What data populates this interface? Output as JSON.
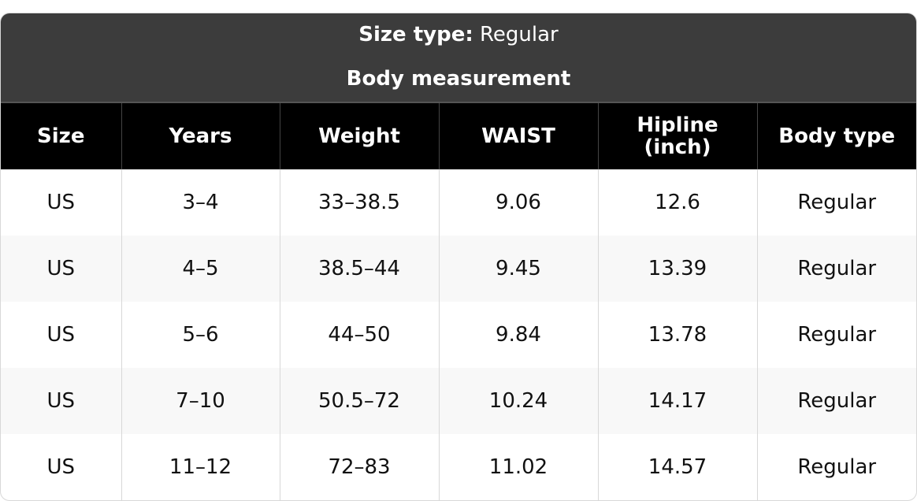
{
  "header": {
    "size_type_label": "Size type:",
    "size_type_value": "Regular",
    "title": "Body measurement"
  },
  "table": {
    "columns": [
      "Size",
      "Years",
      "Weight",
      "WAIST",
      "Hipline (inch)",
      "Body type"
    ],
    "rows": [
      [
        "US",
        "3–4",
        "33–38.5",
        "9.06",
        "12.6",
        "Regular"
      ],
      [
        "US",
        "4–5",
        "38.5–44",
        "9.45",
        "13.39",
        "Regular"
      ],
      [
        "US",
        "5–6",
        "44–50",
        "9.84",
        "13.78",
        "Regular"
      ],
      [
        "US",
        "7–10",
        "50.5–72",
        "10.24",
        "14.17",
        "Regular"
      ],
      [
        "US",
        "11–12",
        "72–83",
        "11.02",
        "14.57",
        "Regular"
      ]
    ]
  }
}
